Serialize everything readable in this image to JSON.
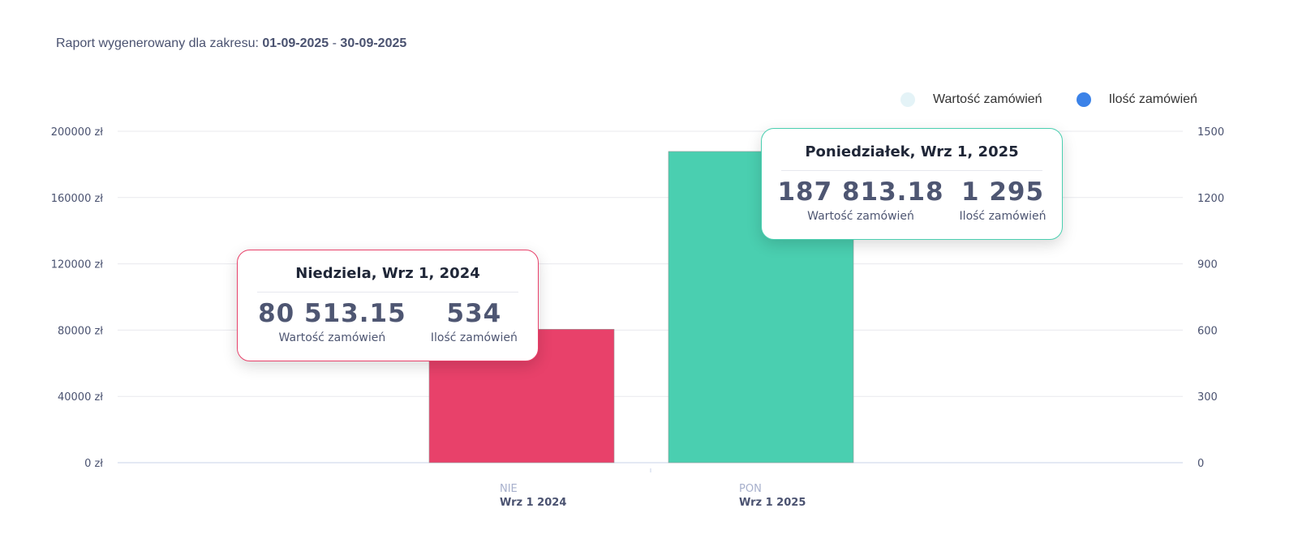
{
  "header": {
    "prefix": "Raport wygenerowany dla zakresu: ",
    "start": "01-09-2025",
    "sep": " - ",
    "end": "30-09-2025"
  },
  "legend": [
    {
      "label": "Wartość zamówień",
      "color": "#e4f3f7"
    },
    {
      "label": "Ilość zamówień",
      "color": "#3b82e8"
    }
  ],
  "chart_data": {
    "type": "bar",
    "categories": [
      {
        "day": "NIE",
        "date": "Wrz 1 2024"
      },
      {
        "day": "PON",
        "date": "Wrz 1 2025"
      }
    ],
    "series": [
      {
        "name": "Wartość zamówień",
        "values": [
          80513.15,
          187813.18
        ],
        "colors": [
          "#e8416a",
          "#4ace b0"
        ]
      }
    ],
    "bar_colors": [
      "#e8416a",
      "#4acfb0"
    ],
    "orders": [
      534,
      1295
    ],
    "y_left": {
      "ticks": [
        "0 zł",
        "40000 zł",
        "80000 zł",
        "120000 zł",
        "160000 zł",
        "200000 zł"
      ],
      "range": [
        0,
        200000
      ]
    },
    "y_right": {
      "ticks": [
        "0",
        "300",
        "600",
        "900",
        "1200",
        "1500"
      ],
      "range": [
        0,
        1500
      ]
    },
    "grid": true,
    "legend_position": "top-right"
  },
  "tooltips": [
    {
      "title": "Niedziela, Wrz 1, 2024",
      "value": "80 513.15",
      "value_label": "Wartość zamówień",
      "count": "534",
      "count_label": "Ilość zamówień",
      "border": "#e8416a"
    },
    {
      "title": "Poniedziałek, Wrz 1, 2025",
      "value": "187 813.18",
      "value_label": "Wartość zamówień",
      "count": "1 295",
      "count_label": "Ilość zamówień",
      "border": "#4acfb0"
    }
  ]
}
